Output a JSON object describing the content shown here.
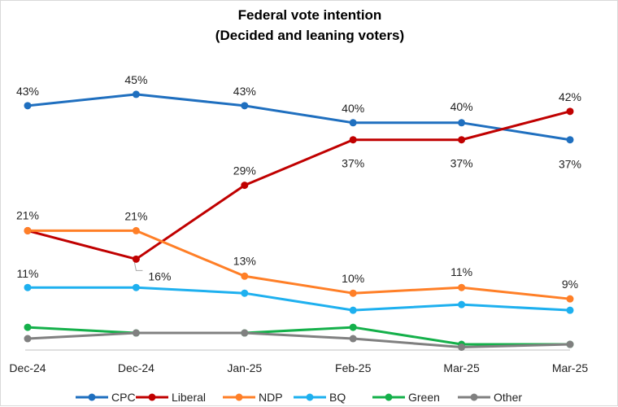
{
  "chart_data": {
    "type": "line",
    "title": "Federal vote intention",
    "subtitle": "(Decided and leaning voters)",
    "categories": [
      "Dec-24",
      "Dec-24",
      "Jan-25",
      "Feb-25",
      "Mar-25",
      "Mar-25"
    ],
    "ylim": [
      0,
      50
    ],
    "grid": false,
    "legend_position": "bottom",
    "series": [
      {
        "name": "CPC",
        "color": "#1f6fbf",
        "values": [
          43,
          45,
          43,
          40,
          40,
          37
        ]
      },
      {
        "name": "Liberal",
        "color": "#c00000",
        "values": [
          21,
          16,
          29,
          37,
          37,
          42
        ]
      },
      {
        "name": "NDP",
        "color": "#ff7f27",
        "values": [
          21,
          21,
          13,
          10,
          11,
          9
        ]
      },
      {
        "name": "BQ",
        "color": "#1eb0ef",
        "values": [
          11,
          11,
          10,
          7,
          8,
          7
        ]
      },
      {
        "name": "Green",
        "color": "#14b04a",
        "values": [
          4,
          3,
          3,
          4,
          1,
          1
        ]
      },
      {
        "name": "Other",
        "color": "#808080",
        "values": [
          2,
          3,
          3,
          2,
          0.5,
          1
        ]
      }
    ],
    "data_labels": [
      {
        "series": "CPC",
        "index": 0,
        "text": "43%"
      },
      {
        "series": "CPC",
        "index": 1,
        "text": "45%"
      },
      {
        "series": "CPC",
        "index": 2,
        "text": "43%"
      },
      {
        "series": "CPC",
        "index": 3,
        "text": "40%"
      },
      {
        "series": "CPC",
        "index": 4,
        "text": "40%"
      },
      {
        "series": "CPC",
        "index": 5,
        "text": "37%"
      },
      {
        "series": "Liberal",
        "index": 0,
        "text": "21%"
      },
      {
        "series": "Liberal",
        "index": 1,
        "text": "16%"
      },
      {
        "series": "Liberal",
        "index": 2,
        "text": "29%"
      },
      {
        "series": "Liberal",
        "index": 3,
        "text": "37%"
      },
      {
        "series": "Liberal",
        "index": 4,
        "text": "37%"
      },
      {
        "series": "Liberal",
        "index": 5,
        "text": "42%"
      },
      {
        "series": "NDP",
        "index": 1,
        "text": "21%"
      },
      {
        "series": "NDP",
        "index": 2,
        "text": "13%"
      },
      {
        "series": "NDP",
        "index": 3,
        "text": "10%"
      },
      {
        "series": "NDP",
        "index": 4,
        "text": "11%"
      },
      {
        "series": "NDP",
        "index": 5,
        "text": "9%"
      },
      {
        "series": "BQ",
        "index": 0,
        "text": "11%"
      }
    ]
  }
}
